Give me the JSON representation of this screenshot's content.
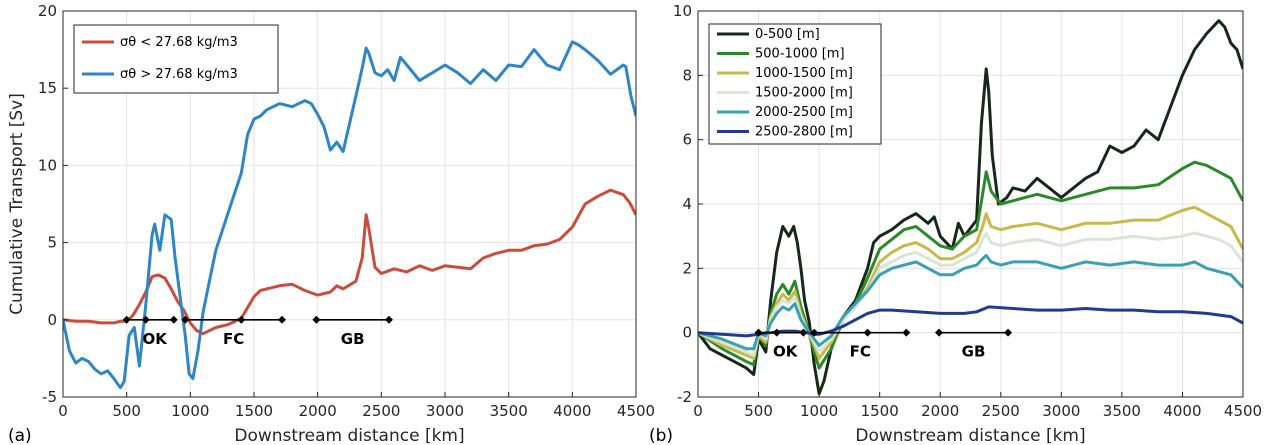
{
  "panels": [
    {
      "panel_label": "(a)",
      "xlabel": "Downstream distance [km]",
      "ylabel": "Cumulative Transport [Sv]"
    },
    {
      "panel_label": "(b)",
      "xlabel": "Downstream distance [km]",
      "ylabel": ""
    }
  ],
  "chart_data": [
    {
      "type": "line",
      "panel": "(a)",
      "title": "",
      "xlabel": "Downstream distance [km]",
      "ylabel": "Cumulative Transport [Sv]",
      "xlim": [
        0,
        4500
      ],
      "ylim": [
        -5,
        20
      ],
      "xticks": [
        0,
        500,
        1000,
        1500,
        2000,
        2500,
        3000,
        3500,
        4000,
        4500
      ],
      "yticks": [
        -5,
        0,
        5,
        10,
        15,
        20
      ],
      "grid": true,
      "legend_position": "top-left",
      "segments": [
        {
          "label": "OK",
          "x": [
            500,
            870
          ]
        },
        {
          "label": "FC",
          "x": [
            960,
            1720
          ]
        },
        {
          "label": "GB",
          "x": [
            1990,
            2560
          ]
        }
      ],
      "segment_points": [
        500,
        650,
        870,
        960,
        1400,
        1720,
        1990,
        2560
      ],
      "segment_labels": [
        {
          "label": "OK",
          "x": 720
        },
        {
          "label": "FC",
          "x": 1340
        },
        {
          "label": "GB",
          "x": 2275
        }
      ],
      "series": [
        {
          "name": "σθ < 27.68 kg/m3",
          "color": "#cc4c3b",
          "x": [
            0,
            100,
            200,
            300,
            400,
            450,
            500,
            550,
            600,
            650,
            700,
            750,
            800,
            850,
            900,
            950,
            1000,
            1050,
            1100,
            1150,
            1200,
            1300,
            1400,
            1500,
            1550,
            1600,
            1700,
            1800,
            1900,
            2000,
            2100,
            2150,
            2200,
            2300,
            2350,
            2380,
            2400,
            2450,
            2500,
            2600,
            2700,
            2800,
            2900,
            3000,
            3100,
            3200,
            3300,
            3400,
            3500,
            3600,
            3700,
            3800,
            3900,
            4000,
            4100,
            4200,
            4300,
            4400,
            4450,
            4500
          ],
          "values": [
            0,
            -0.1,
            -0.1,
            -0.2,
            -0.2,
            -0.1,
            -0.1,
            0.3,
            1.0,
            1.8,
            2.8,
            2.9,
            2.7,
            2.0,
            1.2,
            0.6,
            -0.2,
            -0.7,
            -0.9,
            -0.7,
            -0.5,
            -0.3,
            0.1,
            1.5,
            1.9,
            2.0,
            2.2,
            2.3,
            1.9,
            1.6,
            1.8,
            2.2,
            2.0,
            2.5,
            4.0,
            6.8,
            6.0,
            3.4,
            3.0,
            3.3,
            3.1,
            3.5,
            3.2,
            3.5,
            3.4,
            3.3,
            4.0,
            4.3,
            4.5,
            4.5,
            4.8,
            4.9,
            5.2,
            6.0,
            7.5,
            8.0,
            8.4,
            8.1,
            7.6,
            6.8
          ]
        },
        {
          "name": "σθ > 27.68 kg/m3",
          "color": "#2f86c4",
          "x": [
            0,
            50,
            100,
            150,
            200,
            250,
            300,
            350,
            400,
            450,
            480,
            520,
            560,
            600,
            650,
            700,
            720,
            760,
            800,
            850,
            880,
            920,
            960,
            990,
            1020,
            1060,
            1100,
            1150,
            1200,
            1300,
            1400,
            1450,
            1500,
            1550,
            1600,
            1700,
            1800,
            1900,
            1950,
            2000,
            2050,
            2100,
            2150,
            2200,
            2300,
            2350,
            2380,
            2400,
            2450,
            2500,
            2550,
            2600,
            2650,
            2700,
            2800,
            2900,
            3000,
            3100,
            3200,
            3300,
            3400,
            3500,
            3600,
            3700,
            3800,
            3900,
            4000,
            4050,
            4100,
            4200,
            4300,
            4400,
            4420,
            4460,
            4500
          ],
          "values": [
            0,
            -2.0,
            -2.8,
            -2.5,
            -2.7,
            -3.2,
            -3.5,
            -3.3,
            -3.8,
            -4.4,
            -4.0,
            -1.0,
            -0.5,
            -3.0,
            1.0,
            5.5,
            6.2,
            4.5,
            6.8,
            6.5,
            4.0,
            1.5,
            -1.0,
            -3.5,
            -3.8,
            -2.0,
            0.5,
            2.5,
            4.5,
            7.0,
            9.5,
            12.0,
            13.0,
            13.2,
            13.6,
            14.0,
            13.8,
            14.2,
            14.0,
            13.3,
            12.5,
            11.0,
            11.5,
            10.9,
            14.5,
            16.3,
            17.6,
            17.3,
            16.0,
            15.8,
            16.2,
            15.5,
            17.0,
            16.5,
            15.5,
            16.0,
            16.5,
            16.0,
            15.3,
            16.2,
            15.5,
            16.5,
            16.4,
            17.5,
            16.5,
            16.2,
            18.0,
            17.8,
            17.5,
            16.8,
            15.9,
            16.5,
            16.4,
            14.5,
            13.2
          ]
        }
      ]
    },
    {
      "type": "line",
      "panel": "(b)",
      "title": "",
      "xlabel": "Downstream distance [km]",
      "ylabel": "",
      "xlim": [
        0,
        4500
      ],
      "ylim": [
        -2,
        10
      ],
      "xticks": [
        0,
        500,
        1000,
        1500,
        2000,
        2500,
        3000,
        3500,
        4000,
        4500
      ],
      "yticks": [
        -2,
        0,
        2,
        4,
        6,
        8,
        10
      ],
      "grid": true,
      "legend_position": "top-left",
      "segments": [
        {
          "label": "OK",
          "x": [
            500,
            870
          ]
        },
        {
          "label": "FC",
          "x": [
            960,
            1720
          ]
        },
        {
          "label": "GB",
          "x": [
            1990,
            2560
          ]
        }
      ],
      "segment_points": [
        500,
        650,
        870,
        960,
        1400,
        1720,
        1990,
        2560
      ],
      "segment_labels": [
        {
          "label": "OK",
          "x": 720
        },
        {
          "label": "FC",
          "x": 1340
        },
        {
          "label": "GB",
          "x": 2275
        }
      ],
      "series": [
        {
          "name": "0-500 [m]",
          "color": "#17281a",
          "x": [
            0,
            100,
            200,
            300,
            400,
            460,
            500,
            560,
            600,
            650,
            700,
            750,
            790,
            820,
            850,
            880,
            920,
            960,
            1000,
            1040,
            1100,
            1200,
            1300,
            1400,
            1450,
            1500,
            1600,
            1700,
            1800,
            1900,
            1950,
            2000,
            2100,
            2150,
            2200,
            2300,
            2340,
            2380,
            2400,
            2430,
            2480,
            2550,
            2600,
            2700,
            2800,
            2900,
            3000,
            3100,
            3200,
            3300,
            3400,
            3500,
            3600,
            3700,
            3800,
            3900,
            4000,
            4100,
            4200,
            4300,
            4350,
            4400,
            4450,
            4500
          ],
          "values": [
            0,
            -0.5,
            -0.7,
            -0.9,
            -1.1,
            -1.3,
            -0.2,
            -0.6,
            1.0,
            2.5,
            3.3,
            3.0,
            3.3,
            2.8,
            2.0,
            1.0,
            0.3,
            -1.0,
            -1.9,
            -1.5,
            -0.5,
            0.5,
            1.0,
            2.0,
            2.8,
            3.0,
            3.2,
            3.5,
            3.7,
            3.4,
            3.6,
            3.0,
            2.6,
            3.4,
            3.0,
            3.5,
            6.5,
            8.2,
            7.5,
            5.5,
            4.0,
            4.2,
            4.5,
            4.4,
            4.8,
            4.5,
            4.2,
            4.5,
            4.8,
            5.0,
            5.8,
            5.6,
            5.8,
            6.3,
            6.0,
            7.0,
            8.0,
            8.8,
            9.3,
            9.7,
            9.5,
            9.0,
            8.8,
            8.2
          ]
        },
        {
          "name": "500-1000 [m]",
          "color": "#2a8a2a",
          "x": [
            0,
            200,
            400,
            460,
            500,
            560,
            600,
            650,
            700,
            750,
            800,
            850,
            900,
            960,
            1000,
            1100,
            1200,
            1300,
            1400,
            1500,
            1600,
            1700,
            1800,
            1900,
            2000,
            2100,
            2200,
            2300,
            2350,
            2380,
            2420,
            2500,
            2600,
            2800,
            3000,
            3200,
            3400,
            3600,
            3800,
            4000,
            4100,
            4200,
            4300,
            4400,
            4500
          ],
          "values": [
            0,
            -0.5,
            -0.9,
            -1.0,
            -0.1,
            -0.4,
            0.6,
            1.2,
            1.5,
            1.2,
            1.6,
            0.8,
            0.2,
            -0.6,
            -1.1,
            -0.5,
            0.4,
            0.9,
            1.7,
            2.6,
            2.9,
            3.2,
            3.3,
            3.0,
            2.7,
            2.6,
            3.0,
            3.2,
            4.3,
            5.0,
            4.4,
            4.0,
            4.1,
            4.3,
            4.1,
            4.3,
            4.5,
            4.5,
            4.6,
            5.1,
            5.3,
            5.2,
            5.0,
            4.8,
            4.1
          ]
        },
        {
          "name": "1000-1500 [m]",
          "color": "#c9b94a",
          "x": [
            0,
            200,
            400,
            460,
            500,
            560,
            600,
            650,
            700,
            750,
            800,
            850,
            900,
            960,
            1000,
            1100,
            1200,
            1300,
            1400,
            1500,
            1600,
            1700,
            1800,
            1900,
            2000,
            2100,
            2200,
            2300,
            2350,
            2380,
            2420,
            2500,
            2600,
            2800,
            3000,
            3200,
            3400,
            3600,
            3800,
            4000,
            4100,
            4200,
            4300,
            4400,
            4500
          ],
          "values": [
            0,
            -0.4,
            -0.7,
            -0.8,
            -0.1,
            -0.3,
            0.5,
            0.9,
            1.2,
            1.0,
            1.3,
            0.6,
            0.1,
            -0.4,
            -0.8,
            -0.3,
            0.4,
            0.8,
            1.4,
            2.2,
            2.5,
            2.7,
            2.8,
            2.6,
            2.3,
            2.3,
            2.5,
            2.8,
            3.3,
            3.7,
            3.3,
            3.2,
            3.3,
            3.4,
            3.2,
            3.4,
            3.4,
            3.5,
            3.5,
            3.8,
            3.9,
            3.7,
            3.5,
            3.3,
            2.6
          ]
        },
        {
          "name": "1500-2000 [m]",
          "color": "#d8e6d6",
          "x": [
            0,
            200,
            400,
            460,
            500,
            560,
            600,
            650,
            700,
            750,
            800,
            850,
            900,
            960,
            1000,
            1100,
            1200,
            1300,
            1400,
            1500,
            1600,
            1700,
            1800,
            1900,
            2000,
            2100,
            2200,
            2300,
            2350,
            2380,
            2420,
            2500,
            2600,
            2800,
            3000,
            3200,
            3400,
            3600,
            3800,
            4000,
            4100,
            4200,
            4300,
            4400,
            4500
          ],
          "values": [
            0,
            -0.3,
            -0.6,
            -0.7,
            0,
            -0.2,
            0.4,
            0.8,
            1.0,
            0.9,
            1.1,
            0.5,
            0.1,
            -0.3,
            -0.6,
            -0.2,
            0.4,
            0.8,
            1.3,
            2.0,
            2.2,
            2.4,
            2.5,
            2.3,
            2.1,
            2.1,
            2.3,
            2.5,
            2.9,
            3.1,
            2.8,
            2.7,
            2.8,
            2.9,
            2.7,
            2.9,
            2.9,
            3.0,
            2.9,
            3.0,
            3.1,
            3.0,
            2.9,
            2.7,
            2.2
          ]
        },
        {
          "name": "2000-2500 [m]",
          "color": "#3aa0b4",
          "x": [
            0,
            200,
            400,
            460,
            500,
            560,
            600,
            650,
            700,
            750,
            800,
            850,
            900,
            960,
            1000,
            1100,
            1200,
            1300,
            1400,
            1500,
            1600,
            1700,
            1800,
            1900,
            2000,
            2100,
            2200,
            2300,
            2350,
            2380,
            2420,
            2500,
            2600,
            2800,
            3000,
            3200,
            3400,
            3600,
            3800,
            4000,
            4100,
            4200,
            4300,
            4400,
            4500
          ],
          "values": [
            0,
            -0.2,
            -0.5,
            -0.5,
            0,
            -0.1,
            0.3,
            0.6,
            0.8,
            0.7,
            0.9,
            0.4,
            0.1,
            -0.2,
            -0.4,
            -0.1,
            0.5,
            0.9,
            1.3,
            1.8,
            2.0,
            2.1,
            2.2,
            2.0,
            1.8,
            1.8,
            2.0,
            2.1,
            2.3,
            2.4,
            2.2,
            2.1,
            2.2,
            2.2,
            2.0,
            2.2,
            2.1,
            2.2,
            2.1,
            2.1,
            2.2,
            2.0,
            1.9,
            1.8,
            1.4
          ]
        },
        {
          "name": "2500-2800 [m]",
          "color": "#233a93",
          "x": [
            0,
            200,
            400,
            500,
            560,
            600,
            700,
            800,
            900,
            960,
            1000,
            1100,
            1200,
            1300,
            1400,
            1500,
            1600,
            1800,
            2000,
            2200,
            2300,
            2400,
            2600,
            2800,
            3000,
            3200,
            3400,
            3600,
            3800,
            4000,
            4200,
            4400,
            4500
          ],
          "values": [
            0,
            -0.05,
            -0.1,
            -0.05,
            0,
            0,
            0.05,
            0.05,
            0,
            -0.05,
            -0.05,
            0.05,
            0.2,
            0.4,
            0.6,
            0.7,
            0.7,
            0.65,
            0.6,
            0.6,
            0.65,
            0.8,
            0.75,
            0.7,
            0.7,
            0.75,
            0.7,
            0.7,
            0.65,
            0.65,
            0.6,
            0.5,
            0.3
          ]
        }
      ]
    }
  ]
}
